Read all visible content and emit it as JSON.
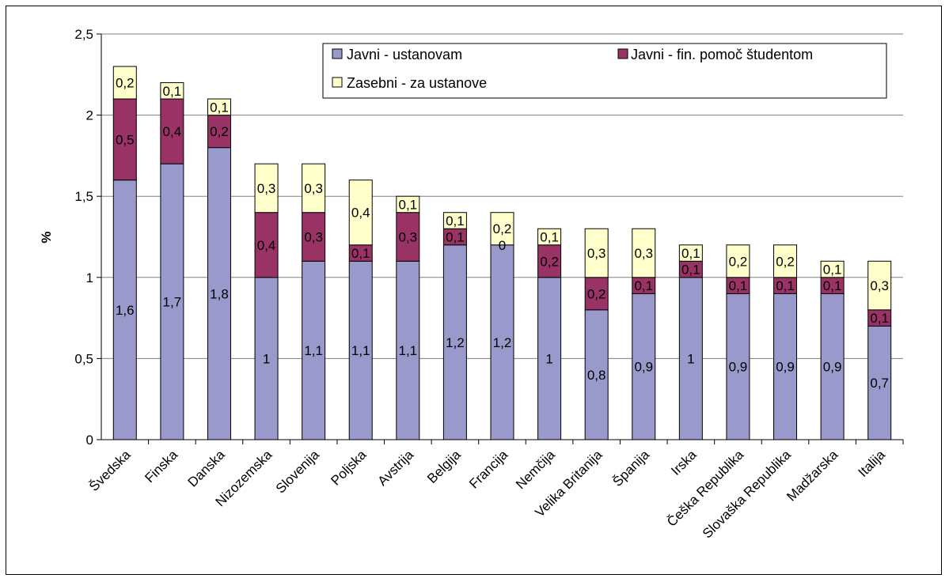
{
  "chart_data": {
    "type": "bar",
    "stacked": true,
    "ylabel": "%",
    "xlabel": "",
    "title": "",
    "ylim": [
      0,
      2.5
    ],
    "yticks": [
      0,
      0.5,
      1,
      1.5,
      2,
      2.5
    ],
    "ytick_labels": [
      "0",
      "0,5",
      "1",
      "1,5",
      "2",
      "2,5"
    ],
    "grid": true,
    "legend_position": "top-right",
    "categories": [
      "Švedska",
      "Finska",
      "Danska",
      "Nizozemska",
      "Slovenija",
      "Poljska",
      "Avstrija",
      "Belgija",
      "Francija",
      "Nemčija",
      "Velika Britanija",
      "Španija",
      "Irska",
      "Češka Republika",
      "Slovaška Republika",
      "Madžarska",
      "Italija"
    ],
    "series": [
      {
        "name": "Javni - ustanovam",
        "color": "#9999cc",
        "values": [
          1.6,
          1.7,
          1.8,
          1.0,
          1.1,
          1.1,
          1.1,
          1.2,
          1.2,
          1.0,
          0.8,
          0.9,
          1.0,
          0.9,
          0.9,
          0.9,
          0.7
        ],
        "labels": [
          "1,6",
          "1,7",
          "1,8",
          "1",
          "1,1",
          "1,1",
          "1,1",
          "1,2",
          "1,2",
          "1",
          "0,8",
          "0,9",
          "1",
          "0,9",
          "0,9",
          "0,9",
          "0,7"
        ]
      },
      {
        "name": "Javni - fin. pomoč študentom",
        "color": "#993366",
        "values": [
          0.5,
          0.4,
          0.2,
          0.4,
          0.3,
          0.1,
          0.3,
          0.1,
          0.0,
          0.2,
          0.2,
          0.1,
          0.1,
          0.1,
          0.1,
          0.1,
          0.1
        ],
        "labels": [
          "0,5",
          "0,4",
          "0,2",
          "0,4",
          "0,3",
          "0,1",
          "0,3",
          "0,1",
          "0",
          "0,2",
          "0,2",
          "0,1",
          "0,1",
          "0,1",
          "0,1",
          "0,1",
          "0,1"
        ]
      },
      {
        "name": "Zasebni - za ustanove",
        "color": "#ffffcc",
        "values": [
          0.2,
          0.1,
          0.1,
          0.3,
          0.3,
          0.4,
          0.1,
          0.1,
          0.2,
          0.1,
          0.3,
          0.3,
          0.1,
          0.2,
          0.2,
          0.1,
          0.3
        ],
        "labels": [
          "0,2",
          "0,1",
          "0,1",
          "0,3",
          "0,3",
          "0,4",
          "0,1",
          "0,1",
          "0,2",
          "0,1",
          "0,3",
          "0,3",
          "0,1",
          "0,2",
          "0,2",
          "0,1",
          "0,3"
        ]
      }
    ]
  }
}
